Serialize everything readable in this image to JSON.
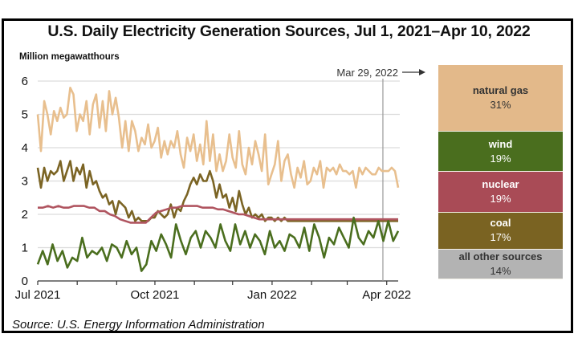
{
  "title": "U.S. Daily Electricity Generation Sources, Jul 1, 2021–Apr 10, 2022",
  "units_label": "Million megawatthours",
  "source": "Source: U.S. Energy Information Administration",
  "marker": {
    "label": "Mar 29, 2022",
    "arrow": "right-arrow-icon",
    "day_index": 271
  },
  "stack": [
    {
      "label": "natural gas",
      "pct": "31%",
      "share": 31,
      "color": "#e3b98a",
      "text_color": "#333333"
    },
    {
      "label": "wind",
      "pct": "19%",
      "share": 19,
      "color": "#4a6e1e",
      "text_color": "#ffffff"
    },
    {
      "label": "nuclear",
      "pct": "19%",
      "share": 19,
      "color": "#a94b56",
      "text_color": "#ffffff"
    },
    {
      "label": "coal",
      "pct": "17%",
      "share": 17,
      "color": "#7a6322",
      "text_color": "#ffffff"
    },
    {
      "label": "all other sources",
      "pct": "14%",
      "share": 14,
      "color": "#b3b3b3",
      "text_color": "#333333"
    }
  ],
  "chart_data": {
    "type": "line",
    "title": "U.S. Daily Electricity Generation Sources, Jul 1, 2021–Apr 10, 2022",
    "xlabel": "",
    "ylabel": "Million megawatthours",
    "ylim": [
      0,
      6
    ],
    "yticks": [
      "0",
      "1",
      "2",
      "3",
      "4",
      "5",
      "6"
    ],
    "xlim_days": [
      0,
      283
    ],
    "xticks": [
      {
        "day": 0,
        "label": "Jul 2021"
      },
      {
        "day": 31,
        "label": ""
      },
      {
        "day": 62,
        "label": ""
      },
      {
        "day": 92,
        "label": "Oct 2021"
      },
      {
        "day": 123,
        "label": ""
      },
      {
        "day": 153,
        "label": ""
      },
      {
        "day": 184,
        "label": "Jan 2022"
      },
      {
        "day": 215,
        "label": ""
      },
      {
        "day": 243,
        "label": ""
      },
      {
        "day": 274,
        "label": "Apr 2022"
      }
    ],
    "grid": true,
    "x_step_days": 4,
    "series": [
      {
        "name": "natural gas",
        "color": "#e8bf8e",
        "values": [
          5.0,
          3.9,
          5.4,
          5.0,
          4.4,
          5.1,
          4.8,
          5.2,
          4.9,
          5.0,
          5.8,
          5.6,
          4.5,
          5.0,
          4.8,
          5.4,
          4.4,
          5.3,
          5.6,
          4.6,
          5.4,
          4.5,
          5.7,
          5.0,
          5.5,
          4.9,
          4.0,
          4.8,
          3.9,
          4.8,
          4.5,
          3.9,
          4.3,
          4.1,
          4.7,
          4.0,
          4.2,
          4.6,
          3.7,
          4.2,
          3.8,
          4.2,
          4.0,
          4.5,
          3.8,
          3.4,
          4.3,
          3.9,
          4.4,
          3.6,
          4.1,
          3.5,
          4.8,
          3.6,
          4.4,
          3.3,
          3.8,
          3.3,
          3.6,
          4.4,
          3.7,
          3.4,
          4.5,
          3.5,
          3.2,
          4.0,
          3.5,
          4.2,
          3.8,
          3.3,
          4.4,
          2.9,
          3.2,
          3.5,
          4.2,
          3.0,
          3.6,
          3.8,
          3.2,
          2.8,
          3.4,
          3.1,
          3.6,
          2.9,
          3.0,
          3.4,
          3.2,
          3.6,
          2.8,
          3.4,
          3.3,
          3.4,
          3.2,
          3.5,
          3.3,
          3.3,
          3.2,
          3.3,
          2.8,
          3.4,
          3.2,
          3.4,
          3.3,
          3.2,
          3.2,
          3.4,
          3.3,
          3.3,
          3.3,
          3.4,
          3.3,
          2.8
        ]
      },
      {
        "name": "coal",
        "color": "#7b6424",
        "values": [
          3.4,
          2.8,
          3.4,
          3.0,
          3.3,
          3.2,
          3.3,
          3.6,
          3.0,
          3.3,
          3.6,
          3.0,
          3.4,
          3.2,
          3.5,
          2.8,
          3.3,
          2.9,
          3.0,
          2.7,
          2.5,
          2.6,
          2.3,
          2.4,
          2.0,
          2.4,
          2.3,
          2.2,
          1.9,
          2.1,
          1.8,
          1.9,
          1.8,
          1.8,
          1.8,
          1.9,
          1.9,
          2.1,
          2.0,
          1.9,
          2.0,
          2.3,
          1.9,
          2.2,
          2.1,
          2.4,
          2.6,
          2.9,
          3.1,
          2.9,
          3.2,
          3.0,
          3.0,
          3.3,
          3.0,
          2.5,
          2.9,
          2.5,
          2.6,
          2.2,
          2.5,
          2.1,
          2.7,
          2.3,
          2.0,
          2.2,
          1.9,
          2.0,
          1.9,
          2.0,
          1.8,
          1.9,
          1.9,
          1.8,
          1.9,
          1.8,
          1.9,
          1.8,
          1.8,
          1.8,
          1.8,
          1.8,
          1.8,
          1.8,
          1.8,
          1.8,
          1.8,
          1.8,
          1.8,
          1.8,
          1.8,
          1.8,
          1.8,
          1.8,
          1.8,
          1.8,
          1.8,
          1.8,
          1.8,
          1.8,
          1.8,
          1.8,
          1.8,
          1.8,
          1.8,
          1.8,
          1.8,
          1.8,
          1.8,
          1.8,
          1.8,
          1.8
        ]
      },
      {
        "name": "nuclear",
        "color": "#b05560",
        "values": [
          2.2,
          2.2,
          2.25,
          2.2,
          2.25,
          2.2,
          2.2,
          2.25,
          2.25,
          2.25,
          2.2,
          2.2,
          2.1,
          2.1,
          2.0,
          1.95,
          1.85,
          1.8,
          1.75,
          1.75,
          1.75,
          1.75,
          1.9,
          2.05,
          2.1,
          2.15,
          2.2,
          2.2,
          2.25,
          2.25,
          2.25,
          2.25,
          2.2,
          2.2,
          2.2,
          2.15,
          2.15,
          2.1,
          2.05,
          2.0,
          2.0,
          1.95,
          1.9,
          1.85,
          1.85,
          1.85,
          1.85,
          1.85,
          1.85,
          1.85,
          1.85,
          1.85,
          1.85,
          1.85,
          1.85,
          1.85,
          1.85,
          1.85,
          1.85,
          1.85,
          1.85,
          1.85,
          1.85,
          1.85,
          1.85,
          1.85,
          1.85,
          1.85,
          1.85,
          1.85,
          1.85
        ]
      },
      {
        "name": "wind",
        "color": "#4a6e1e",
        "values": [
          0.5,
          0.9,
          0.5,
          1.1,
          0.6,
          0.9,
          0.4,
          0.7,
          0.6,
          1.3,
          0.7,
          0.9,
          0.8,
          1.0,
          0.6,
          1.1,
          1.0,
          0.7,
          1.2,
          0.8,
          1.0,
          0.3,
          0.5,
          1.2,
          0.9,
          1.4,
          1.1,
          0.7,
          1.7,
          1.2,
          0.8,
          1.3,
          1.5,
          1.0,
          1.5,
          1.3,
          1.0,
          1.7,
          1.2,
          0.9,
          1.7,
          1.1,
          1.5,
          1.0,
          1.4,
          1.2,
          0.8,
          1.5,
          1.0,
          1.2,
          0.9,
          1.4,
          1.3,
          1.0,
          1.6,
          0.9,
          1.7,
          1.3,
          0.7,
          1.3,
          1.1,
          1.6,
          1.3,
          1.0,
          1.9,
          1.3,
          1.1,
          1.5,
          1.3,
          1.8,
          1.2,
          1.8,
          1.2,
          1.5
        ]
      }
    ]
  }
}
